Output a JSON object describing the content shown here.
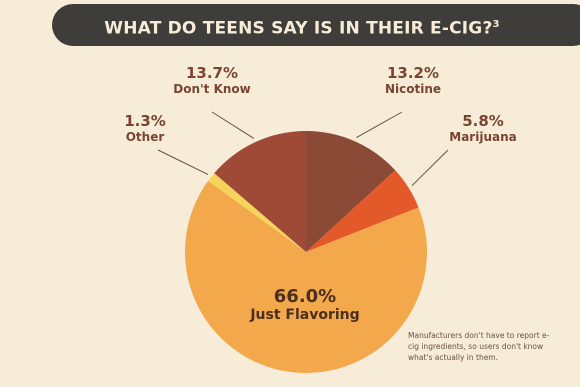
{
  "title": "WHAT DO TEENS SAY IS IN THEIR E-CIG?",
  "title_superscript": "3",
  "note": "Manufacturers don't have to report e-cig ingredients, so users don't know what's actually in them.",
  "chart_data": {
    "type": "pie",
    "slices": [
      {
        "label": "Nicotine",
        "pct_label": "13.2%",
        "value": 13.2,
        "color": "#8a4a35"
      },
      {
        "label": "Marijuana",
        "pct_label": "5.8%",
        "value": 5.8,
        "color": "#e4592a"
      },
      {
        "label": "Just Flavoring",
        "pct_label": "66.0%",
        "value": 66.0,
        "color": "#f2a84b"
      },
      {
        "label": "Other",
        "pct_label": "1.3%",
        "value": 1.3,
        "color": "#f6d35a"
      },
      {
        "label": "Don't Know",
        "pct_label": "13.7%",
        "value": 13.7,
        "color": "#9e4a36"
      }
    ]
  }
}
